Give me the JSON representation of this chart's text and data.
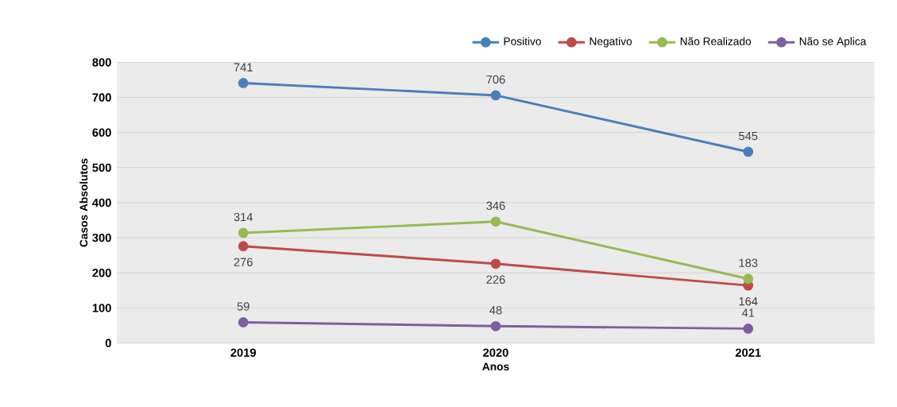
{
  "chart_data": {
    "type": "line",
    "xlabel": "Anos",
    "ylabel": "Casos Absolutos",
    "categories": [
      "2019",
      "2020",
      "2021"
    ],
    "series": [
      {
        "name": "Positivo",
        "color": "#4a7ebb",
        "values": [
          741,
          706,
          545
        ]
      },
      {
        "name": "Negativo",
        "color": "#be4b48",
        "values": [
          276,
          226,
          164
        ]
      },
      {
        "name": "Não Realizado",
        "color": "#98b954",
        "values": [
          314,
          346,
          183
        ]
      },
      {
        "name": "Não se Aplica",
        "color": "#7d5fa0",
        "values": [
          59,
          48,
          41
        ]
      }
    ],
    "ylim": [
      0,
      800
    ],
    "yticks": [
      0,
      100,
      200,
      300,
      400,
      500,
      600,
      700,
      800
    ],
    "grid": "y",
    "legend": "top right",
    "marker": "circle",
    "line_style": "solid",
    "data_labels": true
  }
}
